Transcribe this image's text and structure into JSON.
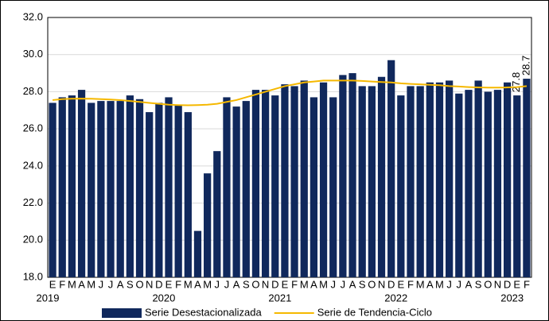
{
  "chart_data": {
    "type": "bar",
    "categories": [
      "E",
      "F",
      "M",
      "A",
      "M",
      "J",
      "J",
      "A",
      "S",
      "O",
      "N",
      "D",
      "E",
      "F",
      "M",
      "A",
      "M",
      "J",
      "J",
      "A",
      "S",
      "O",
      "N",
      "D",
      "E",
      "F",
      "M",
      "A",
      "M",
      "J",
      "J",
      "A",
      "S",
      "O",
      "N",
      "D",
      "E",
      "F",
      "M",
      "A",
      "M",
      "J",
      "J",
      "A",
      "S",
      "O",
      "N",
      "D",
      "E",
      "F"
    ],
    "years": [
      "2019",
      "2020",
      "2021",
      "2022",
      "2023"
    ],
    "series": [
      {
        "name": "Serie Desestacionalizada",
        "type": "bar",
        "color": "#10285c",
        "values": [
          27.4,
          27.7,
          27.8,
          28.1,
          27.4,
          27.5,
          27.5,
          27.5,
          27.8,
          27.6,
          26.9,
          27.4,
          27.7,
          27.3,
          26.9,
          20.5,
          23.6,
          24.8,
          27.7,
          27.2,
          27.5,
          28.1,
          28.1,
          27.8,
          28.4,
          28.3,
          28.6,
          27.7,
          28.5,
          27.7,
          28.9,
          29.0,
          28.3,
          28.3,
          28.8,
          29.7,
          27.8,
          28.3,
          28.3,
          28.5,
          28.5,
          28.6,
          27.9,
          28.1,
          28.6,
          28.0,
          28.1,
          28.5,
          27.8,
          28.7
        ],
        "value_labels": [
          null,
          null,
          null,
          null,
          null,
          null,
          null,
          null,
          null,
          null,
          null,
          null,
          null,
          null,
          null,
          null,
          null,
          null,
          null,
          null,
          null,
          null,
          null,
          null,
          null,
          null,
          null,
          null,
          null,
          null,
          null,
          null,
          null,
          null,
          null,
          null,
          null,
          null,
          null,
          null,
          null,
          null,
          null,
          null,
          null,
          null,
          null,
          null,
          "27.8",
          "28.7"
        ]
      },
      {
        "name": "Serie de Tendencia-Ciclo",
        "type": "line",
        "color": "#f5b800",
        "values": [
          27.55,
          27.6,
          27.62,
          27.63,
          27.62,
          27.6,
          27.58,
          27.55,
          27.5,
          27.45,
          27.4,
          27.35,
          27.3,
          27.28,
          27.27,
          27.28,
          27.3,
          27.35,
          27.45,
          27.55,
          27.7,
          27.85,
          28.0,
          28.15,
          28.3,
          28.4,
          28.5,
          28.55,
          28.6,
          28.6,
          28.6,
          28.6,
          28.58,
          28.55,
          28.52,
          28.5,
          28.45,
          28.42,
          28.4,
          28.37,
          28.35,
          28.3,
          28.28,
          28.25,
          28.23,
          28.22,
          28.22,
          28.23,
          28.25,
          28.3
        ]
      }
    ],
    "ylim": [
      18,
      32
    ],
    "yticks": [
      {
        "value": 18,
        "label": "18.0"
      },
      {
        "value": 20,
        "label": "20.0"
      },
      {
        "value": 22,
        "label": "22.0"
      },
      {
        "value": 24,
        "label": "24.0"
      },
      {
        "value": 26,
        "label": "26.0"
      },
      {
        "value": 28,
        "label": "28.0"
      },
      {
        "value": 30,
        "label": "30.0"
      },
      {
        "value": 32,
        "label": "32.0"
      }
    ],
    "grid": true
  }
}
